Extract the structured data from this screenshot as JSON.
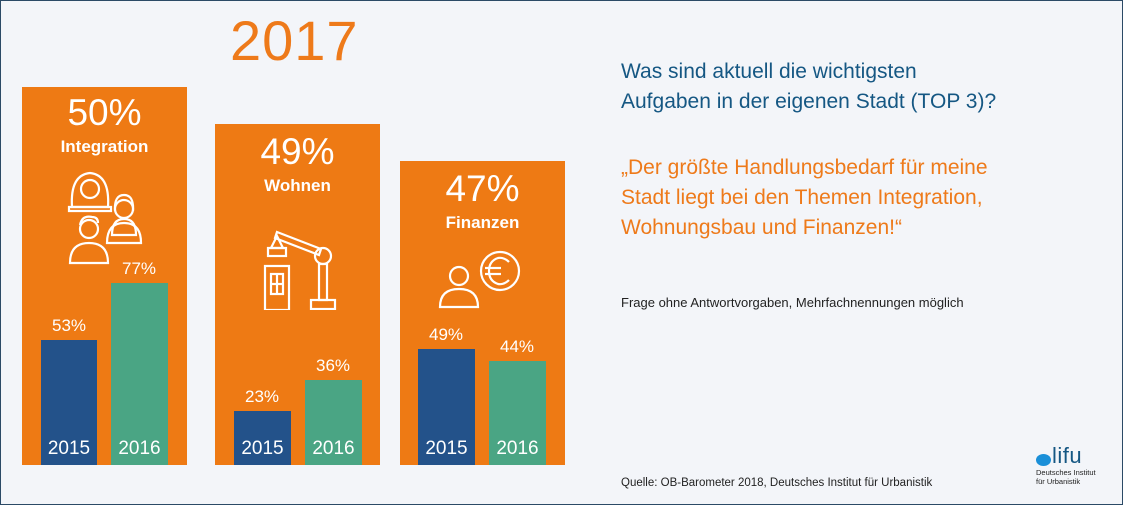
{
  "header": {
    "year": "2017"
  },
  "colors": {
    "accent": "#ee7a14",
    "bar_2015": "#23528a",
    "bar_2016": "#4aa584",
    "question": "#155783",
    "background": "#f3f5f9"
  },
  "question": {
    "line1": "Was sind aktuell die wichtigsten",
    "line2": "Aufgaben in der eigenen Stadt (TOP 3)?"
  },
  "quote": {
    "line1": "„Der größte Handlungsbedarf für meine",
    "line2": "Stadt liegt bei den Themen Integration,",
    "line3": "Wohnungsbau und Finanzen!“"
  },
  "note": "Frage ohne Antwortvorgaben, Mehrfachnennungen möglich",
  "source": "Quelle: OB-Barometer 2018, Deutsches Institut für Urbanistik",
  "logo": {
    "word": "lifu",
    "sub1": "Deutsches Institut",
    "sub2": "für Urbanistik"
  },
  "chart_data": {
    "type": "bar",
    "title": "2017",
    "subtitle": "Was sind aktuell die wichtigsten Aufgaben in der eigenen Stadt (TOP 3)?",
    "categories": [
      "Integration",
      "Wohnen",
      "Finanzen"
    ],
    "icons": [
      "people-icon",
      "crane-building-icon",
      "person-euro-icon"
    ],
    "headline_2017": [
      {
        "topic": "Integration",
        "value": 50,
        "label": "50%"
      },
      {
        "topic": "Wohnen",
        "value": 49,
        "label": "49%"
      },
      {
        "topic": "Finanzen",
        "value": 47,
        "label": "47%"
      }
    ],
    "series": [
      {
        "name": "2015",
        "values": [
          53,
          23,
          49
        ],
        "labels": [
          "53%",
          "23%",
          "49%"
        ]
      },
      {
        "name": "2016",
        "values": [
          77,
          36,
          44
        ],
        "labels": [
          "77%",
          "36%",
          "44%"
        ]
      }
    ],
    "unit": "%",
    "xlabel": "",
    "ylabel": "",
    "ylim": [
      0,
      100
    ],
    "grid": false,
    "legend": "none"
  }
}
